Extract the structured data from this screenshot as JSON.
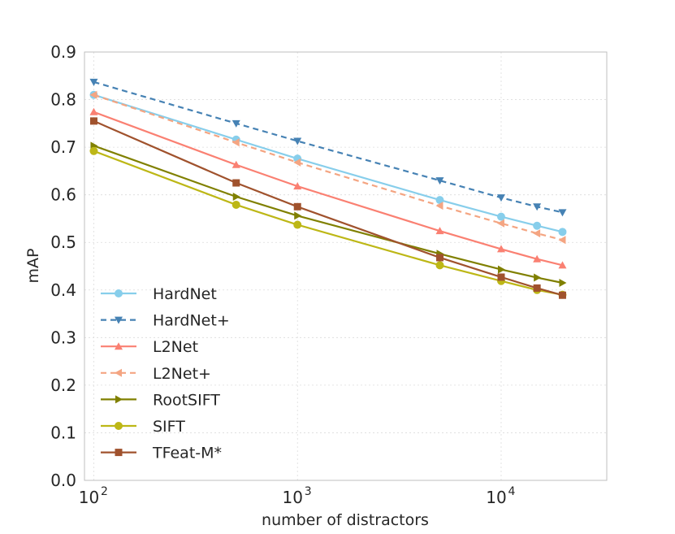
{
  "chart_data": {
    "type": "line",
    "title": "",
    "xlabel": "number of distractors",
    "ylabel": "mAP",
    "xscale": "log",
    "xlim": [
      90,
      33000
    ],
    "ylim": [
      0.0,
      0.9
    ],
    "yticks": [
      "0.0",
      "0.1",
      "0.2",
      "0.3",
      "0.4",
      "0.5",
      "0.6",
      "0.7",
      "0.8",
      "0.9"
    ],
    "xticks": [
      {
        "value": 100,
        "base": "10",
        "exp": "2"
      },
      {
        "value": 1000,
        "base": "10",
        "exp": "3"
      },
      {
        "value": 10000,
        "base": "10",
        "exp": "4"
      }
    ],
    "grid": true,
    "legend_position": "lower-left",
    "x": [
      100,
      500,
      1000,
      5000,
      10000,
      15000,
      20000
    ],
    "series": [
      {
        "name": "HardNet",
        "color": "#87CEEB",
        "dash": "solid",
        "marker": "circle",
        "values": [
          0.81,
          0.716,
          0.676,
          0.589,
          0.554,
          0.535,
          0.522
        ]
      },
      {
        "name": "HardNet+",
        "color": "#4682B4",
        "dash": "dashed",
        "marker": "triangle-down",
        "values": [
          0.837,
          0.75,
          0.713,
          0.63,
          0.594,
          0.575,
          0.563
        ]
      },
      {
        "name": "L2Net",
        "color": "#FA8072",
        "dash": "solid",
        "marker": "triangle-up",
        "values": [
          0.774,
          0.663,
          0.618,
          0.524,
          0.486,
          0.465,
          0.452
        ]
      },
      {
        "name": "L2Net+",
        "color": "#F4A582",
        "dash": "dashed",
        "marker": "triangle-left",
        "values": [
          0.81,
          0.71,
          0.668,
          0.577,
          0.54,
          0.519,
          0.505
        ]
      },
      {
        "name": "RootSIFT",
        "color": "#808000",
        "dash": "solid",
        "marker": "triangle-right",
        "values": [
          0.703,
          0.596,
          0.556,
          0.476,
          0.443,
          0.426,
          0.415
        ]
      },
      {
        "name": "SIFT",
        "color": "#BDB716",
        "dash": "solid",
        "marker": "circle",
        "values": [
          0.692,
          0.579,
          0.537,
          0.452,
          0.419,
          0.4,
          0.39
        ]
      },
      {
        "name": "TFeat-M*",
        "color": "#A0522D",
        "dash": "solid",
        "marker": "square",
        "values": [
          0.755,
          0.625,
          0.575,
          0.468,
          0.427,
          0.404,
          0.389
        ]
      }
    ]
  }
}
